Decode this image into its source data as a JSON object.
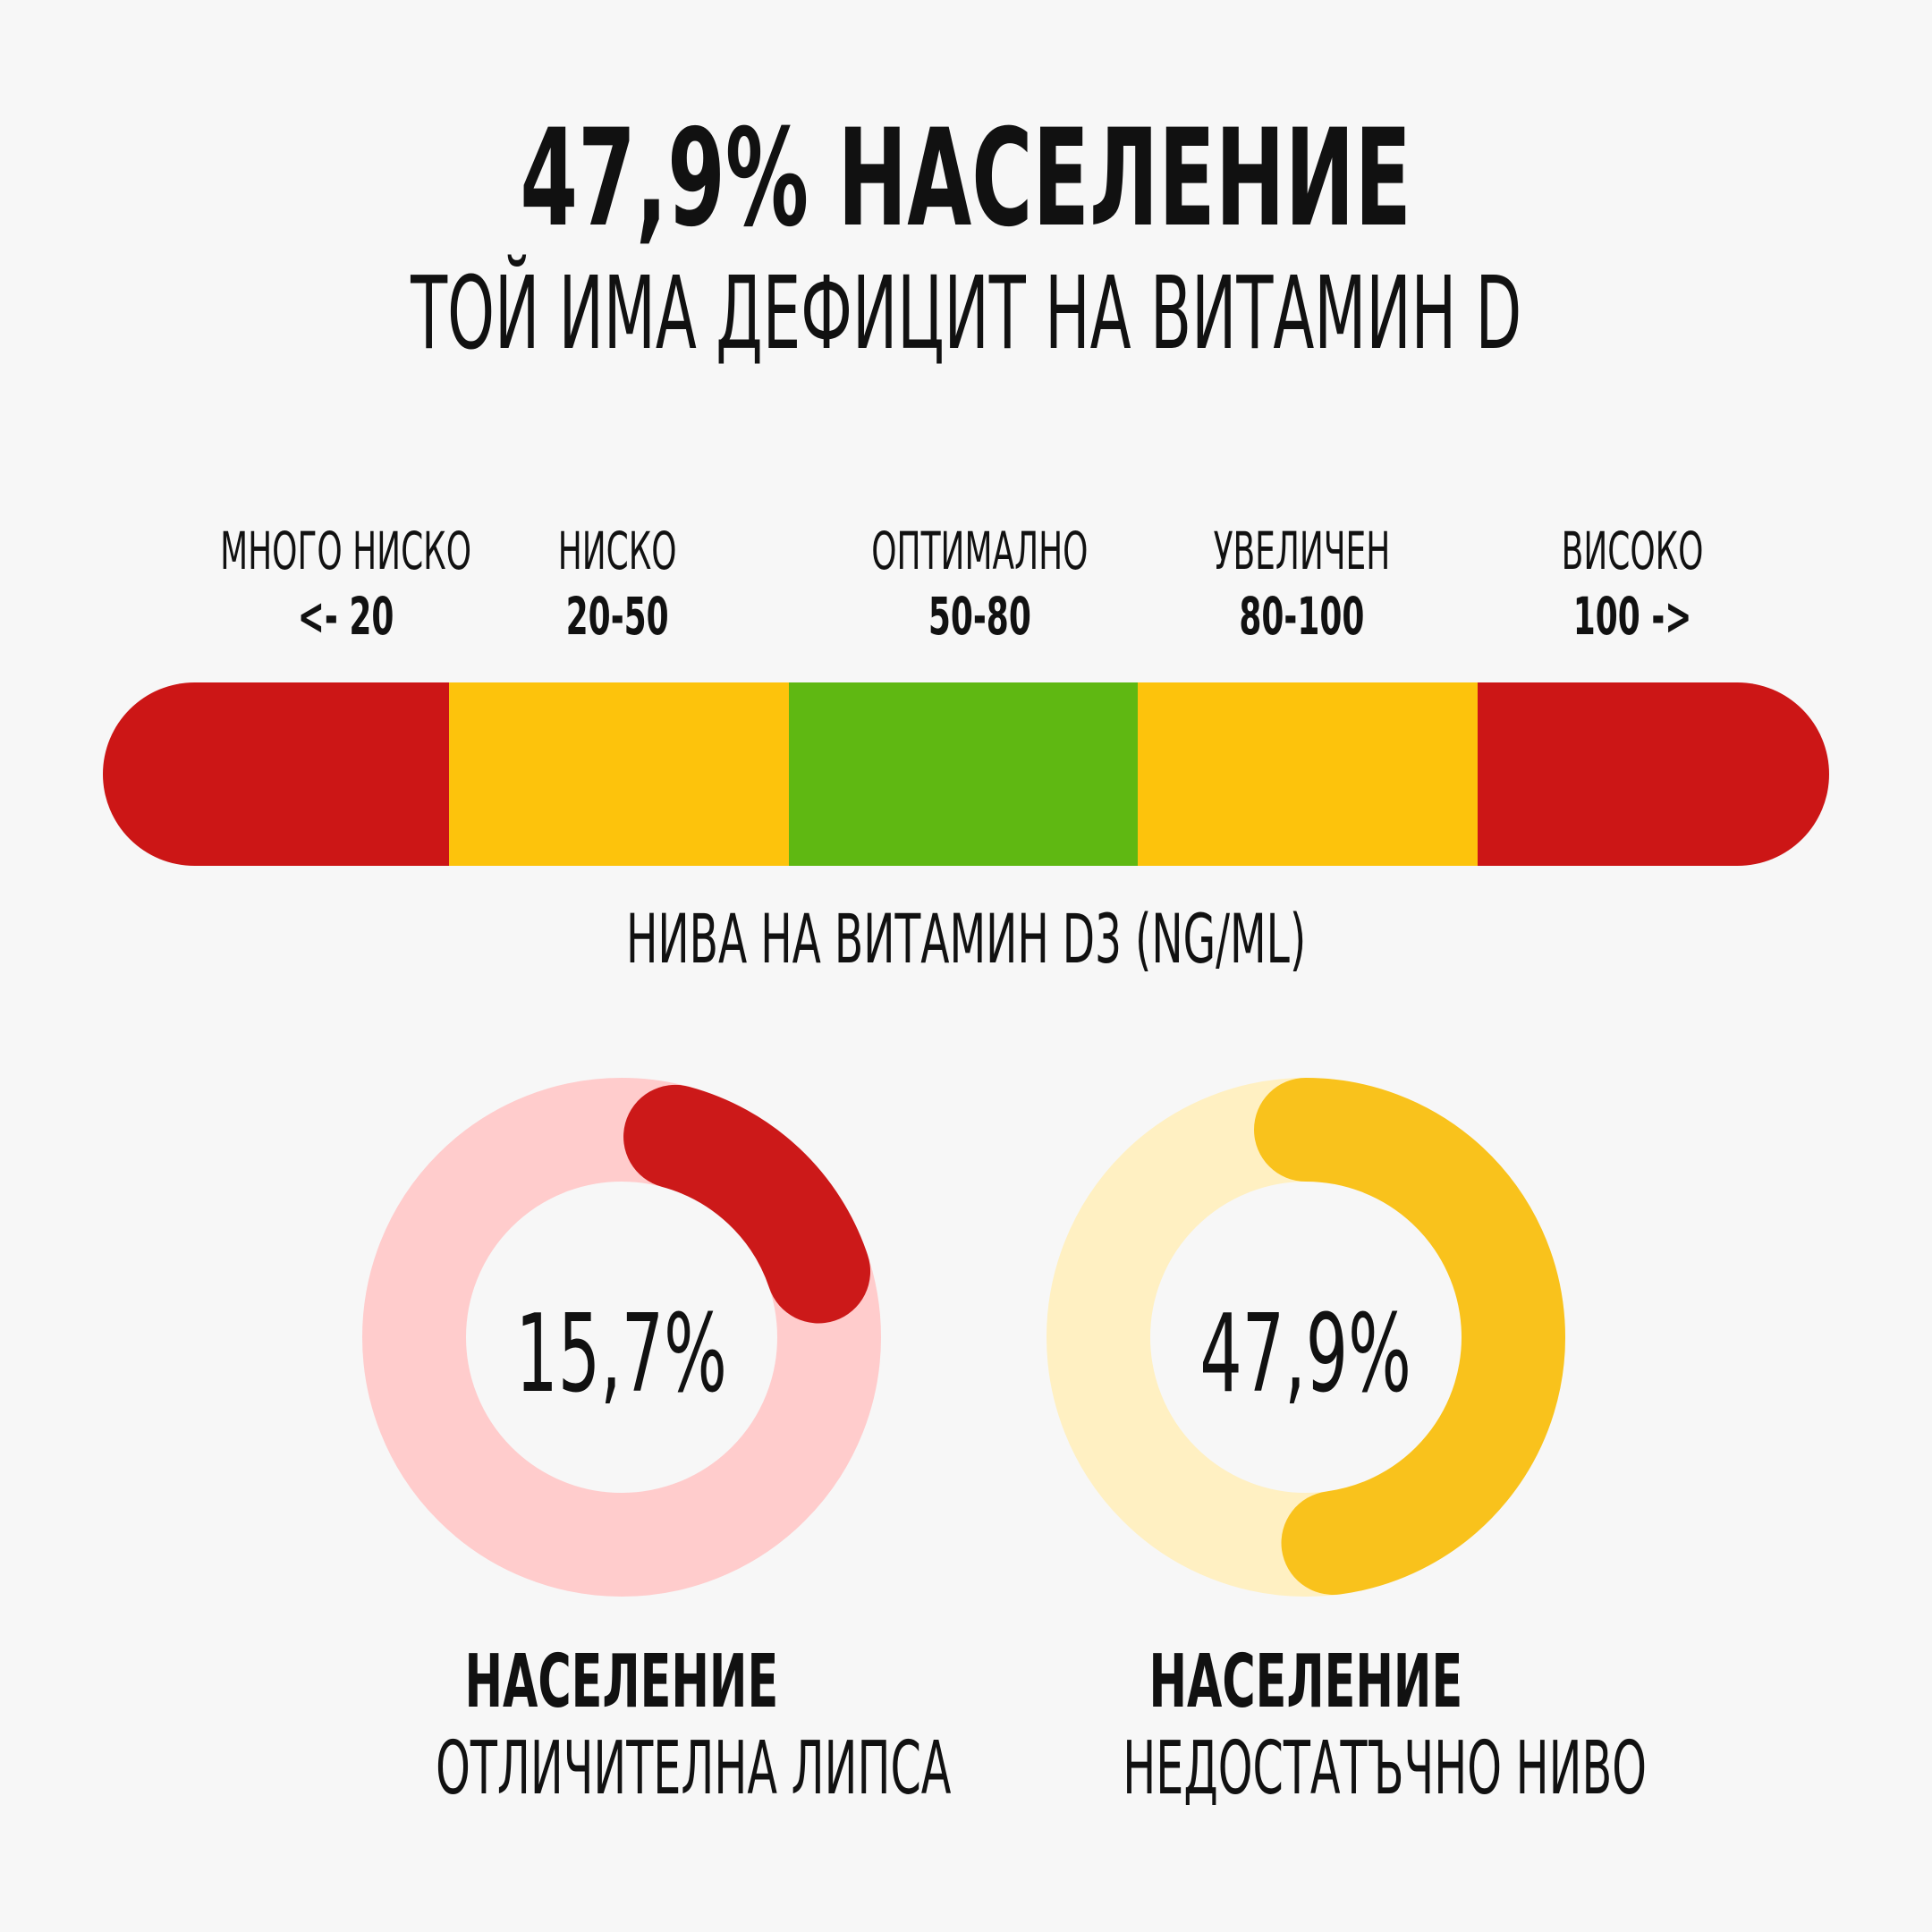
{
  "header": {
    "title": "47,9% НАСЕЛЕНИЕ",
    "subtitle": "ТОЙ ИМА ДЕФИЦИТ НА ВИТАМИН D"
  },
  "scale": {
    "segments": [
      {
        "label": "МНОГО НИСКО",
        "range": "<- 20",
        "color": "#cc1616"
      },
      {
        "label": "НИСКО",
        "range": "20-50",
        "color": "#fdc30c"
      },
      {
        "label": "ОПТИМАЛНО",
        "range": "50-80",
        "color": "#5fb812"
      },
      {
        "label": "УВЕЛИЧЕН",
        "range": "80-100",
        "color": "#fdc30c"
      },
      {
        "label": "ВИСОКО",
        "range": "100 ->",
        "color": "#cc1616"
      }
    ],
    "axis_label": "НИВА НА ВИТАМИН D3 (NG/ML)"
  },
  "stats": [
    {
      "value_text": "15,7%",
      "value": 15.7,
      "title": "НАСЕЛЕНИЕ",
      "subtitle": "ОТЛИЧИТЕЛНА ЛИПСА",
      "color": "#cc1919",
      "track_color": "#ffcccc"
    },
    {
      "value_text": "47,9%",
      "value": 47.9,
      "title": "НАСЕЛЕНИЕ",
      "subtitle": "НЕДОСТАТЪЧНО НИВО",
      "color": "#f9c21c",
      "track_color": "#fff0c2"
    }
  ]
}
